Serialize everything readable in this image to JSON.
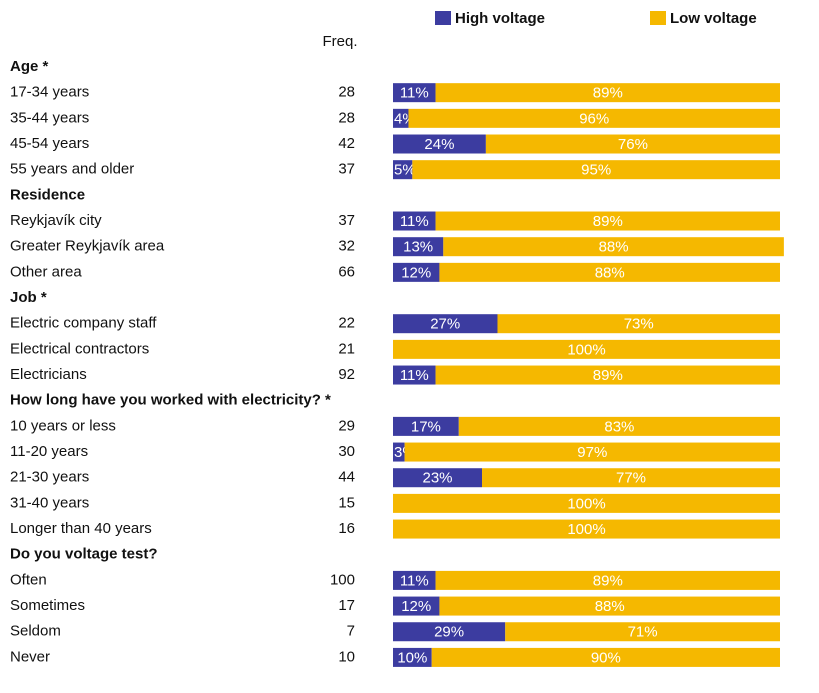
{
  "chart_data": {
    "type": "bar",
    "stacked": true,
    "orientation": "horizontal",
    "freq_label": "Freq.",
    "xlim": [
      0,
      100
    ],
    "groups": [
      {
        "title": "Age *",
        "categories": [
          "17-34 years",
          "35-44 years",
          "45-54 years",
          "55 years and older"
        ],
        "freq": [
          28,
          28,
          42,
          37
        ]
      },
      {
        "title": "Residence",
        "categories": [
          "Reykjavík city",
          "Greater Reykjavík area",
          "Other area"
        ],
        "freq": [
          37,
          32,
          66
        ]
      },
      {
        "title": "Job *",
        "categories": [
          "Electric company staff",
          "Electrical contractors",
          "Electricians"
        ],
        "freq": [
          22,
          21,
          92
        ]
      },
      {
        "title": "How long have you worked with electricity? *",
        "categories": [
          "10 years or less",
          "11-20 years",
          "21-30 years",
          "31-40 years",
          "Longer than 40 years"
        ],
        "freq": [
          29,
          30,
          44,
          15,
          16
        ]
      },
      {
        "title": "Do you voltage test?",
        "categories": [
          "Often",
          "Sometimes",
          "Seldom",
          "Never"
        ],
        "freq": [
          100,
          17,
          7,
          10
        ]
      }
    ],
    "series": [
      {
        "name": "High voltage",
        "color": "#3c3ca0",
        "values": [
          11,
          4,
          24,
          5,
          11,
          13,
          12,
          27,
          0,
          11,
          17,
          3,
          23,
          0,
          0,
          11,
          12,
          29,
          10
        ],
        "value_labels": [
          "11%",
          "4%",
          "24%",
          "5%",
          "11%",
          "13%",
          "12%",
          "27%",
          null,
          "11%",
          "17%",
          "3%",
          "23%",
          null,
          null,
          "11%",
          "12%",
          "29%",
          "10%"
        ]
      },
      {
        "name": "Low voltage",
        "color": "#f5b800",
        "values": [
          89,
          96,
          76,
          95,
          89,
          88,
          88,
          73,
          100,
          89,
          83,
          97,
          77,
          100,
          100,
          89,
          88,
          71,
          90
        ],
        "value_labels": [
          "89%",
          "96%",
          "76%",
          "95%",
          "89%",
          "88%",
          "88%",
          "73%",
          "100%",
          "89%",
          "83%",
          "97%",
          "77%",
          "100%",
          "100%",
          "89%",
          "88%",
          "71%",
          "90%"
        ]
      }
    ]
  }
}
